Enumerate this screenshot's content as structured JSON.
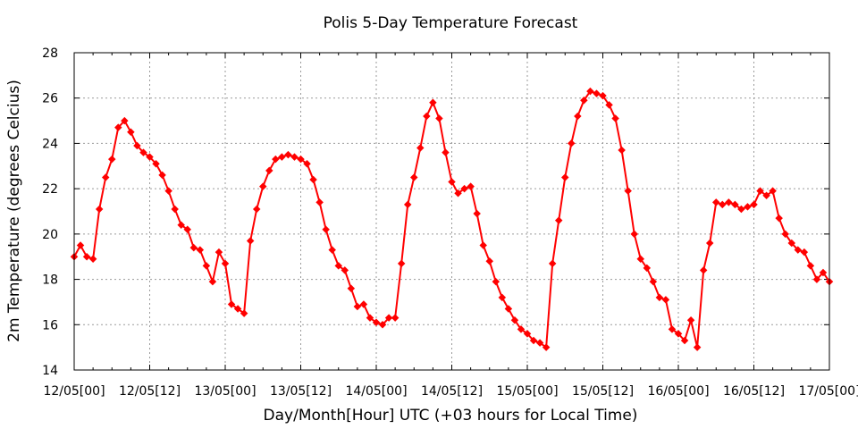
{
  "chart_data": {
    "type": "line",
    "title": "Polis 5-Day Temperature Forecast",
    "xlabel": "Day/Month[Hour] UTC (+03 hours for Local Time)",
    "ylabel": "2m Temperature (degrees Celcius)",
    "x_tick_labels": [
      "12/05[00]",
      "12/05[12]",
      "13/05[00]",
      "13/05[12]",
      "14/05[00]",
      "14/05[12]",
      "15/05[00]",
      "15/05[12]",
      "16/05[00]",
      "16/05[12]",
      "17/05[00]"
    ],
    "x_tick_hours": [
      0,
      12,
      24,
      36,
      48,
      60,
      72,
      84,
      96,
      108,
      120
    ],
    "y_ticks": [
      14,
      16,
      18,
      20,
      22,
      24,
      26,
      28
    ],
    "xlim": [
      0,
      120
    ],
    "ylim": [
      14,
      28
    ],
    "grid": true,
    "marker_color": "#ff0000",
    "line_color": "#ff0000",
    "series": [
      {
        "x": [
          0,
          1,
          2,
          3,
          4,
          5,
          6,
          7,
          8,
          9,
          10,
          11,
          12,
          13,
          14,
          15,
          16,
          17,
          18,
          19,
          20,
          21,
          22,
          23,
          24,
          25,
          26,
          27,
          28,
          29,
          30,
          31,
          32,
          33,
          34,
          35,
          36,
          37,
          38,
          39,
          40,
          41,
          42,
          43,
          44,
          45,
          46,
          47,
          48,
          49,
          50,
          51,
          52,
          53,
          54,
          55,
          56,
          57,
          58,
          59,
          60,
          61,
          62,
          63,
          64,
          65,
          66,
          67,
          68,
          69,
          70,
          71,
          72,
          73,
          74,
          75,
          76,
          77,
          78,
          79,
          80,
          81,
          82,
          83,
          84,
          85,
          86,
          87,
          88,
          89,
          90,
          91,
          92,
          93,
          94,
          95,
          96,
          97,
          98,
          99,
          100,
          101,
          102,
          103,
          104,
          105,
          106,
          107,
          108,
          109,
          110,
          111,
          112,
          113,
          114,
          115,
          116,
          117,
          118,
          119,
          120
        ],
        "values": [
          19.0,
          19.5,
          19.0,
          18.9,
          21.1,
          22.5,
          23.3,
          24.7,
          25.0,
          24.5,
          23.9,
          23.6,
          23.4,
          23.1,
          22.6,
          21.9,
          21.1,
          20.4,
          20.2,
          19.4,
          19.3,
          18.6,
          17.9,
          19.2,
          18.7,
          16.9,
          16.7,
          16.5,
          19.7,
          21.1,
          22.1,
          22.8,
          23.3,
          23.4,
          23.5,
          23.4,
          23.3,
          23.1,
          22.4,
          21.4,
          20.2,
          19.3,
          18.6,
          18.4,
          17.6,
          16.8,
          16.9,
          16.3,
          16.1,
          16.0,
          16.3,
          16.3,
          18.7,
          21.3,
          22.5,
          23.8,
          25.2,
          25.8,
          25.1,
          23.6,
          22.3,
          21.8,
          22.0,
          22.1,
          20.9,
          19.5,
          18.8,
          17.9,
          17.2,
          16.7,
          16.2,
          15.8,
          15.6,
          15.3,
          15.2,
          15.0,
          18.7,
          20.6,
          22.5,
          24.0,
          25.2,
          25.9,
          26.3,
          26.2,
          26.1,
          25.7,
          25.1,
          23.7,
          21.9,
          20.0,
          18.9,
          18.5,
          17.9,
          17.2,
          17.1,
          15.8,
          15.6,
          15.3,
          16.2,
          15.0,
          18.4,
          19.6,
          21.4,
          21.3,
          21.4,
          21.3,
          21.1,
          21.2,
          21.3,
          21.9,
          21.7,
          21.9,
          20.7,
          20.0,
          19.6,
          19.3,
          19.2,
          18.6,
          18.0,
          18.3,
          17.9
        ]
      }
    ]
  }
}
